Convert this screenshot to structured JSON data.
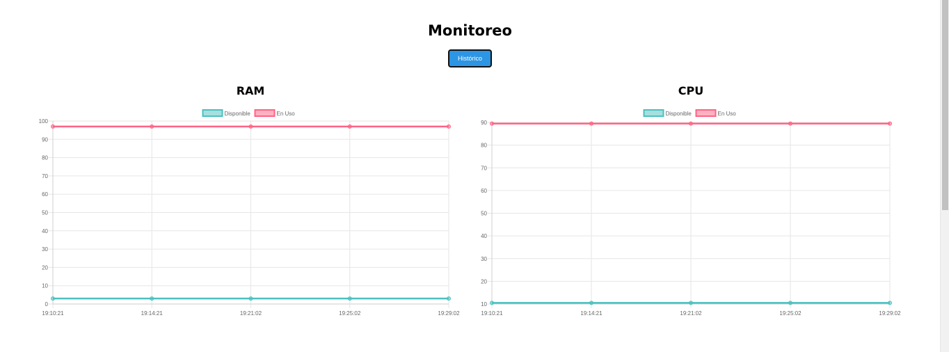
{
  "page": {
    "title": "Monitoreo"
  },
  "toolbar": {
    "history_label": "Histórico"
  },
  "colors": {
    "available": "#4bc0c0",
    "in_use": "#ff6384",
    "button": "#2c95e4"
  },
  "chart_data": [
    {
      "id": "ram",
      "type": "line",
      "title": "RAM",
      "x": [
        "19:10:21",
        "19:14:21",
        "19:21:02",
        "19:25:02",
        "19:29:02"
      ],
      "ylim": [
        0,
        100
      ],
      "yticks": [
        0,
        10,
        20,
        30,
        40,
        50,
        60,
        70,
        80,
        90,
        100
      ],
      "grid": true,
      "legend": "top",
      "series": [
        {
          "name": "Disponible",
          "color": "#4bc0c0",
          "values": [
            3,
            3,
            3,
            3,
            3
          ]
        },
        {
          "name": "En Uso",
          "color": "#ff6384",
          "values": [
            97,
            97,
            97,
            97,
            97
          ]
        }
      ]
    },
    {
      "id": "cpu",
      "type": "line",
      "title": "CPU",
      "x": [
        "19:10:21",
        "19:14:21",
        "19:21:02",
        "19:25:02",
        "19:29:02"
      ],
      "ylim": [
        10,
        90
      ],
      "yticks": [
        10,
        20,
        30,
        40,
        50,
        60,
        70,
        80,
        90
      ],
      "grid": true,
      "legend": "top",
      "series": [
        {
          "name": "Disponible",
          "color": "#4bc0c0",
          "values": [
            10.5,
            10.5,
            10.5,
            10.5,
            10.5
          ]
        },
        {
          "name": "En Uso",
          "color": "#ff6384",
          "values": [
            89.5,
            89.5,
            89.5,
            89.5,
            89.5
          ]
        }
      ]
    }
  ]
}
